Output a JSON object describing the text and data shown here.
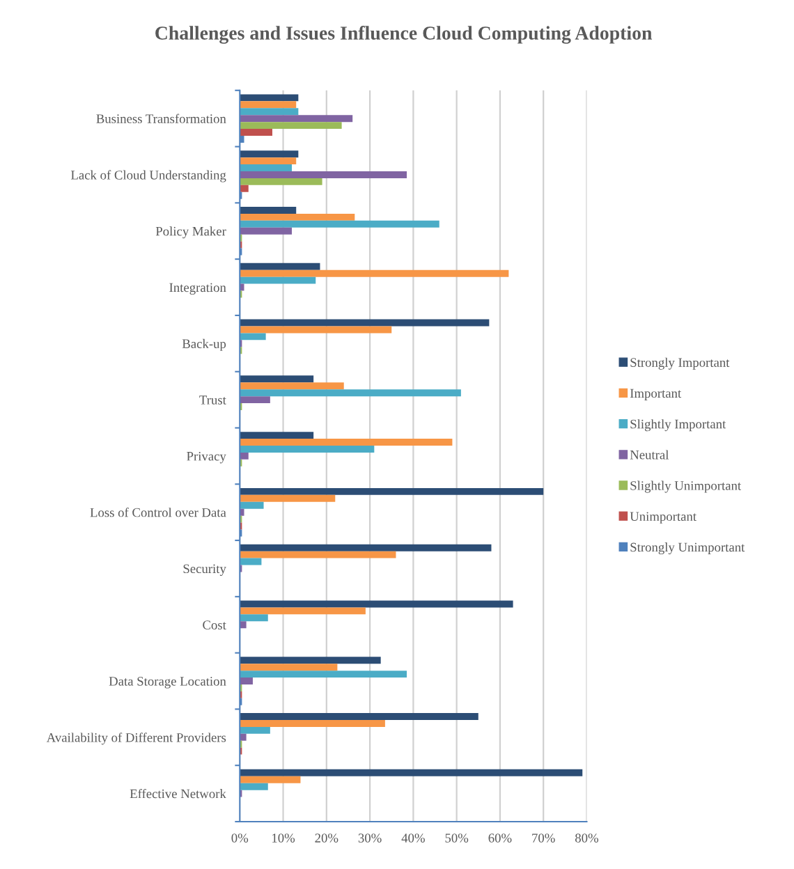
{
  "chart_data": {
    "type": "bar",
    "orientation": "horizontal",
    "title": "Challenges and Issues Influence Cloud Computing Adoption",
    "categories": [
      "Business Transformation",
      "Lack of Cloud Understanding",
      "Policy Maker",
      "Integration",
      "Back-up",
      "Trust",
      "Privacy",
      "Loss of Control over Data",
      "Security",
      "Cost",
      "Data Storage Location",
      "Availability of Different Providers",
      "Effective Network"
    ],
    "series": [
      {
        "name": "Strongly Important",
        "color": "#2c4d75",
        "values": [
          13.5,
          13.5,
          13,
          18.5,
          57.5,
          17,
          17,
          70,
          58,
          63,
          32.5,
          55,
          79
        ]
      },
      {
        "name": "Important",
        "color": "#f79646",
        "values": [
          13,
          13,
          26.5,
          62,
          35,
          24,
          49,
          22,
          36,
          29,
          22.5,
          33.5,
          14
        ]
      },
      {
        "name": "Slightly Important",
        "color": "#4bacc6",
        "values": [
          13.5,
          12,
          46,
          17.5,
          6,
          51,
          31,
          5.5,
          5,
          6.5,
          38.5,
          7,
          6.5
        ]
      },
      {
        "name": "Neutral",
        "color": "#8064a2",
        "values": [
          26,
          38.5,
          12,
          1,
          0.5,
          7,
          2,
          1,
          0.5,
          1.5,
          3,
          1.5,
          0.5
        ]
      },
      {
        "name": "Slightly Unimportant",
        "color": "#9bbb59",
        "values": [
          23.5,
          19,
          0.5,
          0.5,
          0.5,
          0.5,
          0.5,
          0.5,
          0,
          0,
          0.5,
          0.5,
          0
        ]
      },
      {
        "name": "Unimportant",
        "color": "#c0504d",
        "values": [
          7.5,
          2,
          0.5,
          0,
          0,
          0,
          0,
          0.5,
          0,
          0,
          0.5,
          0.5,
          0
        ]
      },
      {
        "name": "Strongly Unimportant",
        "color": "#4f81bd",
        "values": [
          1,
          0.5,
          0.5,
          0,
          0,
          0,
          0,
          0.5,
          0,
          0,
          0.5,
          0,
          0
        ]
      }
    ],
    "xlim": [
      0,
      80
    ],
    "xticks": [
      {
        "value": 0,
        "label": "0%"
      },
      {
        "value": 10,
        "label": "10%"
      },
      {
        "value": 20,
        "label": "20%"
      },
      {
        "value": 30,
        "label": "30%"
      },
      {
        "value": 40,
        "label": "40%"
      },
      {
        "value": 50,
        "label": "50%"
      },
      {
        "value": 60,
        "label": "60%"
      },
      {
        "value": 70,
        "label": "70%"
      },
      {
        "value": 80,
        "label": "80%"
      }
    ],
    "grid": "x",
    "legend": "right"
  }
}
